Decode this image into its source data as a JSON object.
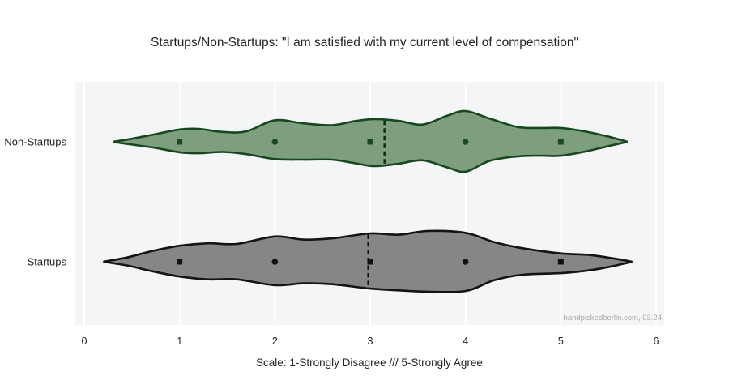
{
  "chart_data": {
    "type": "violin",
    "orientation": "horizontal",
    "title": "Startups/Non-Startups: \"I am satisfied with my current level of compensation\"",
    "xlabel": "Scale: 1-Strongly Disagree /// 5-Strongly Agree",
    "xticks": [
      0,
      1,
      2,
      3,
      4,
      5,
      6
    ],
    "xlim": [
      -0.1,
      6.1
    ],
    "grid": "vertical-white-lines",
    "legend": "none",
    "watermark": "handpickedberlin.com, 03.24",
    "categories": [
      "Non-Startups",
      "Startups"
    ],
    "series": [
      {
        "name": "Non-Startups",
        "fill_color": "#7d9f7e",
        "line_color": "#17471f",
        "marker_color": "#1b4a22",
        "median_line_color": "#10230f",
        "median": 3.15,
        "points": [
          {
            "x": 1,
            "shape": "square"
          },
          {
            "x": 2,
            "shape": "circle"
          },
          {
            "x": 3,
            "shape": "square"
          },
          {
            "x": 4,
            "shape": "circle"
          },
          {
            "x": 5,
            "shape": "square"
          }
        ],
        "envelope": [
          [
            0.3,
            0.0,
            0.0
          ],
          [
            0.5,
            0.1,
            0.09
          ],
          [
            0.75,
            0.25,
            0.2
          ],
          [
            1.0,
            0.4,
            0.34
          ],
          [
            1.2,
            0.42,
            0.37
          ],
          [
            1.45,
            0.32,
            0.33
          ],
          [
            1.7,
            0.34,
            0.4
          ],
          [
            2.0,
            0.7,
            0.56
          ],
          [
            2.3,
            0.6,
            0.58
          ],
          [
            2.6,
            0.54,
            0.58
          ],
          [
            2.85,
            0.68,
            0.7
          ],
          [
            3.05,
            0.74,
            0.79
          ],
          [
            3.3,
            0.68,
            0.71
          ],
          [
            3.55,
            0.56,
            0.6
          ],
          [
            3.8,
            0.84,
            0.82
          ],
          [
            4.0,
            1.0,
            0.97
          ],
          [
            4.25,
            0.76,
            0.62
          ],
          [
            4.55,
            0.48,
            0.47
          ],
          [
            4.8,
            0.45,
            0.45
          ],
          [
            5.0,
            0.45,
            0.45
          ],
          [
            5.25,
            0.34,
            0.32
          ],
          [
            5.5,
            0.17,
            0.14
          ],
          [
            5.7,
            0.0,
            0.0
          ]
        ]
      },
      {
        "name": "Startups",
        "fill_color": "#868686",
        "line_color": "#141414",
        "marker_color": "#111111",
        "median_line_color": "#111111",
        "median": 2.98,
        "points": [
          {
            "x": 1,
            "shape": "square"
          },
          {
            "x": 2,
            "shape": "circle"
          },
          {
            "x": 3,
            "shape": "square"
          },
          {
            "x": 4,
            "shape": "circle"
          },
          {
            "x": 5,
            "shape": "square"
          }
        ],
        "envelope": [
          [
            0.2,
            0.0,
            0.0
          ],
          [
            0.45,
            0.14,
            0.12
          ],
          [
            0.7,
            0.34,
            0.3
          ],
          [
            1.0,
            0.52,
            0.48
          ],
          [
            1.3,
            0.6,
            0.57
          ],
          [
            1.6,
            0.58,
            0.57
          ],
          [
            2.0,
            0.82,
            0.76
          ],
          [
            2.3,
            0.72,
            0.7
          ],
          [
            2.6,
            0.76,
            0.73
          ],
          [
            3.0,
            0.92,
            0.87
          ],
          [
            3.3,
            0.88,
            0.93
          ],
          [
            3.6,
            1.0,
            0.97
          ],
          [
            4.0,
            0.94,
            0.95
          ],
          [
            4.3,
            0.64,
            0.6
          ],
          [
            4.6,
            0.44,
            0.42
          ],
          [
            5.0,
            0.27,
            0.37
          ],
          [
            5.3,
            0.22,
            0.28
          ],
          [
            5.55,
            0.11,
            0.14
          ],
          [
            5.75,
            0.0,
            0.0
          ]
        ]
      }
    ],
    "colors": {
      "plot_bg": "#f3f5f6",
      "grid": "#ffffff",
      "text": "#222222",
      "watermark": "#a8a8a8"
    }
  }
}
